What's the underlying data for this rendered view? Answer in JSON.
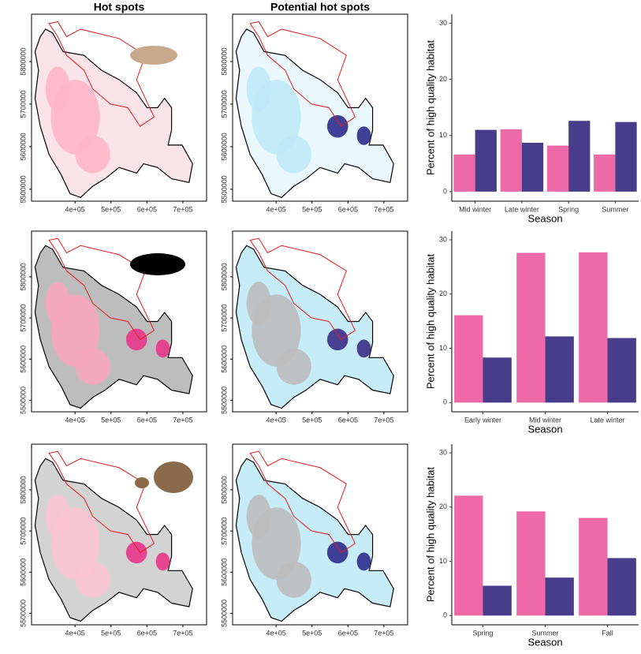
{
  "chart_data": [
    {
      "type": "map",
      "title": "Hot spots",
      "xlim": [
        279000,
        766000
      ],
      "ylim": [
        5472000,
        5911000
      ],
      "xticks": [
        {
          "value": 400000,
          "label": "4e+05"
        },
        {
          "value": 500000,
          "label": "5e+05"
        },
        {
          "value": 600000,
          "label": "6e+05"
        },
        {
          "value": 700000,
          "label": "7e+05"
        }
      ],
      "yticks": [
        5500000,
        5600000,
        5700000,
        5800000
      ]
    },
    {
      "type": "map",
      "title": "Potential hot spots",
      "xlim": [
        279000,
        766000
      ],
      "ylim": [
        5472000,
        5911000
      ],
      "xticks": [
        {
          "value": 400000,
          "label": "4e+05"
        },
        {
          "value": 500000,
          "label": "5e+05"
        },
        {
          "value": 600000,
          "label": "6e+05"
        },
        {
          "value": 700000,
          "label": "7e+05"
        }
      ],
      "yticks": [
        5500000,
        5600000,
        5700000,
        5800000
      ]
    },
    {
      "type": "bar",
      "xlabel": "Season",
      "ylabel": "Percent of high quality habitat",
      "categories": [
        "Mid winter",
        "Late winter",
        "Spring",
        "Summer"
      ],
      "series": [
        {
          "color": "#ee6aa7",
          "values": [
            6.6,
            11.1,
            8.2,
            6.6
          ]
        },
        {
          "color": "#483d8b",
          "values": [
            11.0,
            8.7,
            12.6,
            12.4
          ]
        }
      ],
      "ylim": [
        -1.7,
        31.6
      ],
      "yticks": [
        0,
        10,
        20,
        30
      ]
    },
    {
      "type": "map",
      "xlim": [
        279000,
        766000
      ],
      "ylim": [
        5472000,
        5911000
      ],
      "xticks": [
        {
          "value": 400000,
          "label": "4e+05"
        },
        {
          "value": 500000,
          "label": "5e+05"
        },
        {
          "value": 600000,
          "label": "6e+05"
        },
        {
          "value": 700000,
          "label": "7e+05"
        }
      ],
      "yticks": [
        5500000,
        5600000,
        5700000,
        5800000
      ]
    },
    {
      "type": "map",
      "xlim": [
        279000,
        766000
      ],
      "ylim": [
        5472000,
        5911000
      ],
      "xticks": [
        {
          "value": 400000,
          "label": "4e+05"
        },
        {
          "value": 500000,
          "label": "5e+05"
        },
        {
          "value": 600000,
          "label": "6e+05"
        },
        {
          "value": 700000,
          "label": "7e+05"
        }
      ],
      "yticks": [
        5500000,
        5600000,
        5700000,
        5800000
      ]
    },
    {
      "type": "bar",
      "xlabel": "Season",
      "ylabel": "Percent of high quality habitat",
      "categories": [
        "Early winter",
        "Mid winter",
        "Late winter"
      ],
      "series": [
        {
          "color": "#ee6aa7",
          "values": [
            16.1,
            27.6,
            27.7
          ]
        },
        {
          "color": "#483d8b",
          "values": [
            8.3,
            12.2,
            11.9
          ]
        }
      ],
      "ylim": [
        -1.7,
        31.6
      ],
      "yticks": [
        0,
        10,
        20,
        30
      ]
    },
    {
      "type": "map",
      "xlim": [
        279000,
        766000
      ],
      "ylim": [
        5472000,
        5911000
      ],
      "xticks": [
        {
          "value": 400000,
          "label": "4e+05"
        },
        {
          "value": 500000,
          "label": "5e+05"
        },
        {
          "value": 600000,
          "label": "6e+05"
        },
        {
          "value": 700000,
          "label": "7e+05"
        }
      ],
      "yticks": [
        5500000,
        5600000,
        5700000,
        5800000
      ]
    },
    {
      "type": "map",
      "xlim": [
        279000,
        766000
      ],
      "ylim": [
        5472000,
        5911000
      ],
      "xticks": [
        {
          "value": 400000,
          "label": "4e+05"
        },
        {
          "value": 500000,
          "label": "5e+05"
        },
        {
          "value": 600000,
          "label": "6e+05"
        },
        {
          "value": 700000,
          "label": "7e+05"
        }
      ],
      "yticks": [
        5500000,
        5600000,
        5700000,
        5800000
      ]
    },
    {
      "type": "bar",
      "xlabel": "Season",
      "ylabel": "Percent of high quality habitat",
      "categories": [
        "Spring",
        "Summer",
        "Fall"
      ],
      "series": [
        {
          "color": "#ee6aa7",
          "values": [
            22.1,
            19.2,
            18.0
          ]
        },
        {
          "color": "#483d8b",
          "values": [
            5.5,
            7.0,
            10.6
          ]
        }
      ],
      "ylim": [
        -1.7,
        31.6
      ],
      "yticks": [
        0,
        10,
        20,
        30
      ]
    }
  ]
}
